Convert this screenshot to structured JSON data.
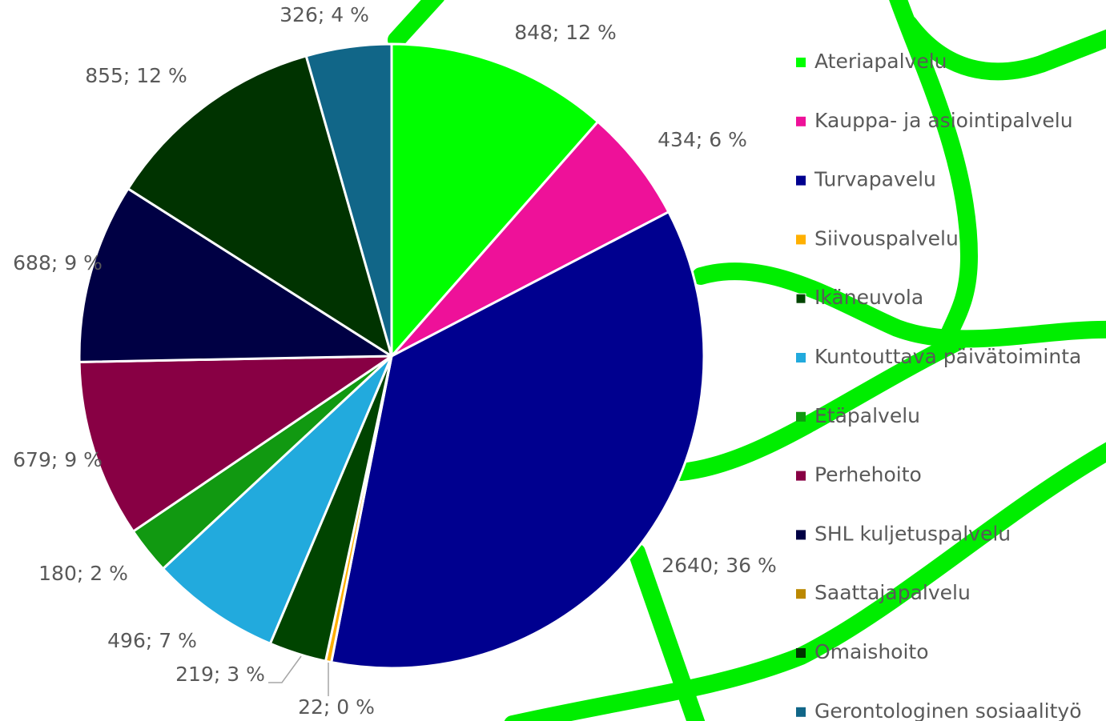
{
  "chart_data": {
    "type": "pie",
    "categories": [
      "Ateriapalvelu",
      "Kauppa- ja asiointipalvelu",
      "Turvapavelu",
      "Siivouspalvelu",
      "Ikäneuvola",
      "Kuntouttava päivätoiminta",
      "Etäpalvelu",
      "Perhehoito",
      "SHL kuljetuspalvelu",
      "Saattajapalvelu",
      "Omaishoito",
      "Gerontologinen sosiaalityö"
    ],
    "values": [
      848,
      434,
      2640,
      22,
      219,
      496,
      180,
      679,
      688,
      0,
      855,
      326
    ],
    "value_labels": [
      "848; 12 %",
      "434; 6 %",
      "2640; 36 %",
      "22; 0 %",
      "219; 3 %",
      "496; 7 %",
      "180; 2 %",
      "679; 9 %",
      "688; 9 %",
      null,
      "855; 12 %",
      "326; 4 %"
    ],
    "colors": [
      "#00ff00",
      "#ee1199",
      "#00008f",
      "#ffb000",
      "#004400",
      "#22aadd",
      "#119911",
      "#880044",
      "#000044",
      "#bb8800",
      "#003300",
      "#116688"
    ],
    "legend": "right"
  }
}
